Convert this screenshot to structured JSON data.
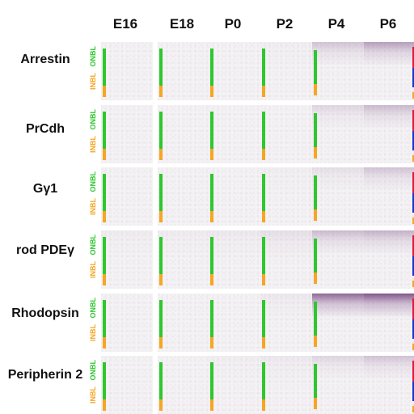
{
  "columns": [
    "E16",
    "E18",
    "P0",
    "P2",
    "P4",
    "P6"
  ],
  "rows": [
    {
      "label": "Arrestin"
    },
    {
      "label": "PrCdh"
    },
    {
      "label": "Gγ1"
    },
    {
      "label": "rod PDEγ"
    },
    {
      "label": "Rhodopsin"
    },
    {
      "label": "Peripherin 2"
    }
  ],
  "layer_labels": {
    "outer": "ONBL",
    "inner": "INBL"
  },
  "colors": {
    "onbl_bar": "#2ec72e",
    "inbl_bar": "#f5a623",
    "p6_outer": "#e8163c",
    "p6_middle": "#1436d6",
    "stain": "#8a5a8a"
  },
  "stain_intensity": [
    [
      0.0,
      0.0,
      0.0,
      0.02,
      0.25,
      0.45
    ],
    [
      0.0,
      0.0,
      0.0,
      0.0,
      0.15,
      0.3
    ],
    [
      0.0,
      0.0,
      0.0,
      0.02,
      0.1,
      0.25
    ],
    [
      0.03,
      0.03,
      0.05,
      0.1,
      0.3,
      0.35
    ],
    [
      0.0,
      0.0,
      0.0,
      0.05,
      0.75,
      0.85
    ],
    [
      0.0,
      0.0,
      0.02,
      0.05,
      0.15,
      0.25
    ]
  ]
}
